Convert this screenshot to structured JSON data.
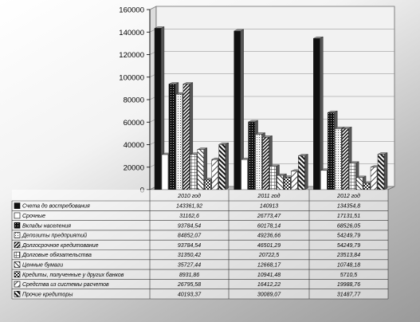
{
  "chart_data": {
    "type": "bar",
    "title": "",
    "xlabel": "",
    "ylabel": "",
    "ylim": [
      0,
      160000
    ],
    "yticks": [
      0,
      20000,
      40000,
      60000,
      80000,
      100000,
      120000,
      140000,
      160000
    ],
    "ytick_labels": [
      "0",
      "20000",
      "40000",
      "60000",
      "80000",
      "100000",
      "120000",
      "140000",
      "160000"
    ],
    "grid": true,
    "legend": "table-below",
    "categories": [
      "2010 год",
      "2011 год",
      "2012 год"
    ],
    "series": [
      {
        "name": "Счета до востребования",
        "pattern": "solid-black",
        "values": [
          143361.92,
          140913,
          134354.8
        ],
        "labels": [
          "143361,92",
          "140913",
          "134354,8"
        ]
      },
      {
        "name": "Срочные",
        "pattern": "white",
        "values": [
          31162.6,
          26773.47,
          17131.51
        ],
        "labels": [
          "31162,6",
          "26773,47",
          "17131,51"
        ]
      },
      {
        "name": "Вклады населения",
        "pattern": "dark-dots",
        "values": [
          93784.54,
          60178.14,
          68526.05
        ],
        "labels": [
          "93784,54",
          "60178,14",
          "68526,05"
        ]
      },
      {
        "name": "Депозиты предприятий",
        "pattern": "light-dots",
        "values": [
          84852.07,
          49236.66,
          54249.79
        ],
        "labels": [
          "84852,07",
          "49236,66",
          "54249,79"
        ]
      },
      {
        "name": "Долгосрочное кредитование",
        "pattern": "diag-dense",
        "values": [
          93784.54,
          46501.29,
          54249.79
        ],
        "labels": [
          "93784,54",
          "46501,29",
          "54249,79"
        ]
      },
      {
        "name": "Долговые обязательства",
        "pattern": "grid",
        "values": [
          31350.42,
          20722.5,
          23513.84
        ],
        "labels": [
          "31350,42",
          "20722,5",
          "23513,84"
        ]
      },
      {
        "name": "Ценные бумаги",
        "pattern": "diag-light",
        "values": [
          35727.44,
          12668.17,
          10748.18
        ],
        "labels": [
          "35727,44",
          "12668,17",
          "10748,18"
        ]
      },
      {
        "name": "Кредиты, полученные у других банков",
        "pattern": "checker",
        "values": [
          8931.86,
          10941.48,
          5710.5
        ],
        "labels": [
          "8931,86",
          "10941,48",
          "5710,5"
        ]
      },
      {
        "name": "Средства из системы расчетов",
        "pattern": "diag-white",
        "values": [
          26795.58,
          16412.22,
          19988.76
        ],
        "labels": [
          "26795,58",
          "16412,22",
          "19988,76"
        ]
      },
      {
        "name": "Прочие кредиторы",
        "pattern": "diag-heavy",
        "values": [
          40193.37,
          30089.07,
          31487.77
        ],
        "labels": [
          "40193,37",
          "30089,07",
          "31487,77"
        ]
      }
    ]
  }
}
